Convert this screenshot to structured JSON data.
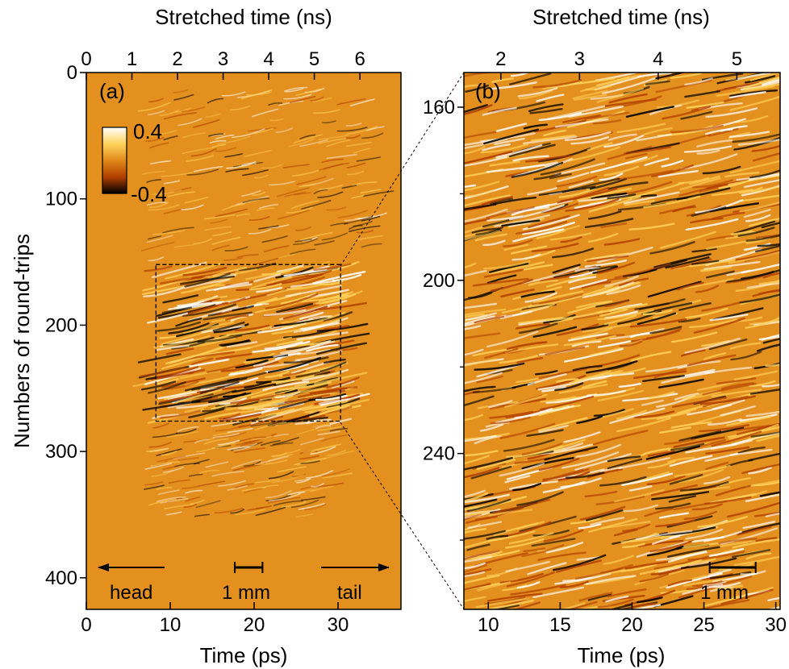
{
  "chart_data": [
    {
      "type": "heatmap",
      "panel_label": "(a)",
      "xlabel": "Time (ps)",
      "x_ticks": [
        0,
        10,
        20,
        30
      ],
      "xlim": [
        0,
        37.5
      ],
      "x2label": "Stretched time (ns)",
      "x2_ticks": [
        0,
        1,
        2,
        3,
        4,
        5,
        6
      ],
      "x2lim": [
        0,
        6.9
      ],
      "ylabel": "Numbers of round-trips",
      "y_ticks": [
        0,
        100,
        200,
        300,
        400
      ],
      "ylim": [
        0,
        425
      ],
      "y_reversed": true,
      "colorbar": {
        "max_label": "0.4",
        "min_label": "-0.4",
        "range": [
          -0.4,
          0.4
        ]
      },
      "colors": [
        "#000000",
        "#b23f00",
        "#e08a1a",
        "#ffd25a",
        "#ffffff"
      ],
      "background_color": "#e3901e",
      "zoom_box": {
        "x": [
          8.3,
          30.3
        ],
        "y": [
          152,
          276
        ]
      },
      "annotations": {
        "left_arrow": "head",
        "right_arrow": "tail",
        "scale_bar": "1 mm"
      },
      "scale_bar_x": [
        17.7,
        21
      ]
    },
    {
      "type": "heatmap",
      "panel_label": "(b)",
      "xlabel": "Time (ps)",
      "x_ticks": [
        10,
        15,
        20,
        25,
        30
      ],
      "xlim": [
        8.3,
        30.3
      ],
      "x2label": "Stretched time (ns)",
      "x2_ticks": [
        2,
        3,
        4,
        5
      ],
      "x2lim": [
        1.53,
        5.55
      ],
      "ylabel": "",
      "y_ticks": [
        160,
        200,
        240
      ],
      "y_minor_ticks": [
        180,
        220,
        260
      ],
      "ylim": [
        152,
        276
      ],
      "y_reversed": true,
      "annotations": {
        "scale_bar": "1 mm"
      },
      "scale_bar_x": [
        25.4,
        28.6
      ]
    }
  ]
}
